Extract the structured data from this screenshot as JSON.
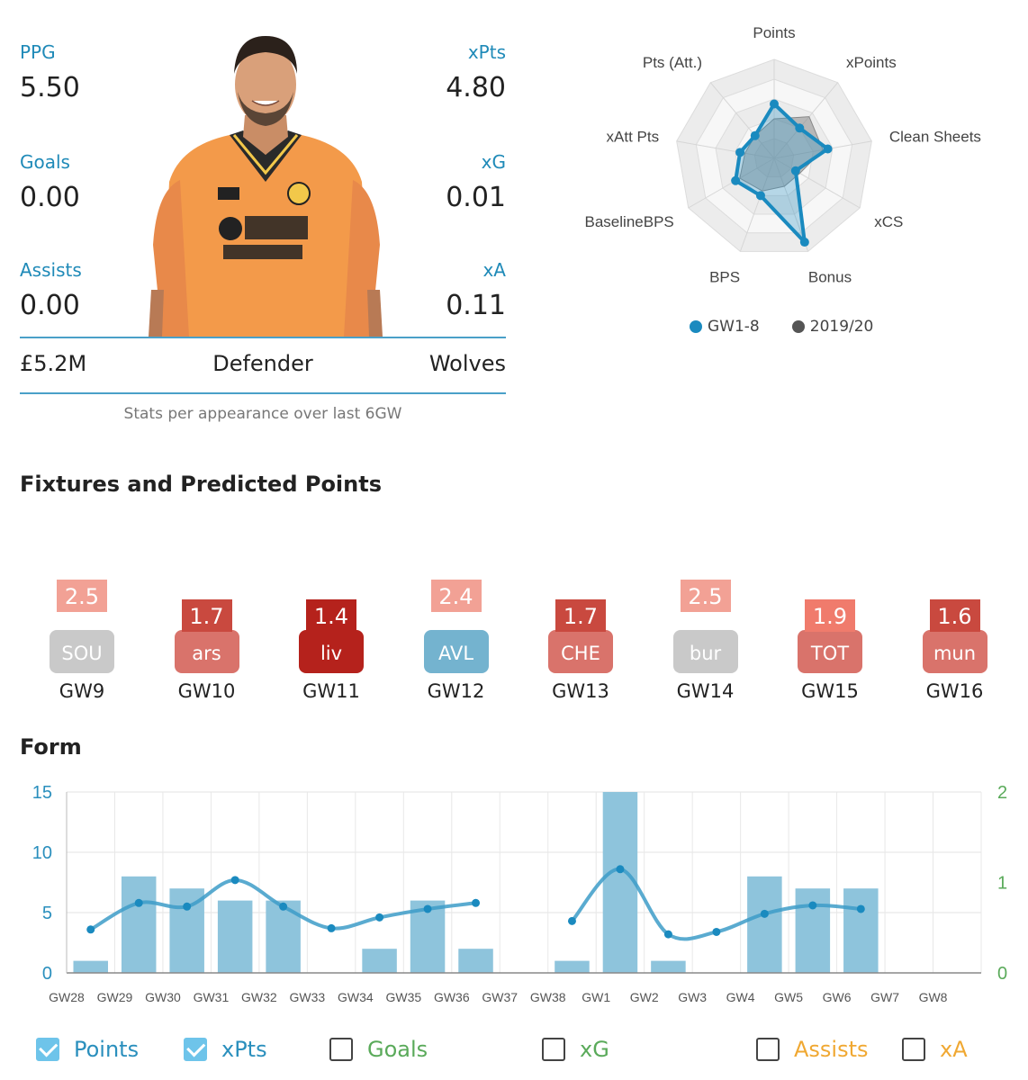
{
  "player": {
    "stats": {
      "ppg": {
        "label": "PPG",
        "value": "5.50"
      },
      "xpts": {
        "label": "xPts",
        "value": "4.80"
      },
      "goals": {
        "label": "Goals",
        "value": "0.00"
      },
      "xg": {
        "label": "xG",
        "value": "0.01"
      },
      "assists": {
        "label": "Assists",
        "value": "0.00"
      },
      "xa": {
        "label": "xA",
        "value": "0.11"
      }
    },
    "price": "£5.2M",
    "position": "Defender",
    "team": "Wolves",
    "note": "Stats per appearance over last 6GW"
  },
  "radar": {
    "axes": [
      "Points",
      "xPoints",
      "Clean Sheets",
      "xCS",
      "Bonus",
      "BPS",
      "BaselineBPS",
      "xAtt Pts",
      "Pts (Att.)"
    ],
    "legend": [
      {
        "label": "GW1-8",
        "color": "#1a8abf"
      },
      {
        "label": "2019/20",
        "color": "#555555"
      }
    ]
  },
  "fixtures": {
    "title": "Fixtures and Predicted Points",
    "items": [
      {
        "gw": "GW9",
        "team": "SOU",
        "pred": "2.5",
        "team_color": "#c9c9c9",
        "pred_color": "#f2a195",
        "raised": true
      },
      {
        "gw": "GW10",
        "team": "ars",
        "pred": "1.7",
        "team_color": "#d9736b",
        "pred_color": "#c9493f",
        "raised": false
      },
      {
        "gw": "GW11",
        "team": "liv",
        "pred": "1.4",
        "team_color": "#b5221c",
        "pred_color": "#b5221c",
        "raised": false
      },
      {
        "gw": "GW12",
        "team": "AVL",
        "pred": "2.4",
        "team_color": "#74b3cf",
        "pred_color": "#f2a195",
        "raised": true
      },
      {
        "gw": "GW13",
        "team": "CHE",
        "pred": "1.7",
        "team_color": "#d9736b",
        "pred_color": "#c9493f",
        "raised": false
      },
      {
        "gw": "GW14",
        "team": "bur",
        "pred": "2.5",
        "team_color": "#c9c9c9",
        "pred_color": "#f2a195",
        "raised": true
      },
      {
        "gw": "GW15",
        "team": "TOT",
        "pred": "1.9",
        "team_color": "#d9736b",
        "pred_color": "#f07b6c",
        "raised": false
      },
      {
        "gw": "GW16",
        "team": "mun",
        "pred": "1.6",
        "team_color": "#d9736b",
        "pred_color": "#c9493f",
        "raised": false
      }
    ]
  },
  "form": {
    "title": "Form",
    "checkboxes": [
      {
        "label": "Points",
        "checked": true,
        "color": "#2a8fbd"
      },
      {
        "label": "xPts",
        "checked": true,
        "color": "#2a8fbd"
      },
      {
        "label": "Goals",
        "checked": false,
        "color": "#5aaa5a"
      },
      {
        "label": "xG",
        "checked": false,
        "color": "#5aaa5a"
      },
      {
        "label": "Assists",
        "checked": false,
        "color": "#f0a832"
      },
      {
        "label": "xA",
        "checked": false,
        "color": "#f0a832"
      }
    ]
  },
  "chart_data": {
    "type": "bar",
    "categories": [
      "GW28",
      "GW29",
      "GW30",
      "GW31",
      "GW32",
      "GW33",
      "GW34",
      "GW35",
      "GW36",
      "GW37",
      "GW38",
      "GW1",
      "GW2",
      "GW3",
      "GW4",
      "GW5",
      "GW6",
      "GW7",
      "GW8"
    ],
    "series": [
      {
        "name": "Points",
        "type": "bar",
        "values": [
          1,
          8,
          7,
          6,
          6,
          null,
          2,
          6,
          2,
          null,
          1,
          15,
          1,
          null,
          8,
          7,
          7,
          null,
          null
        ],
        "color": "#8ec4dc"
      },
      {
        "name": "xPts",
        "type": "line",
        "values": [
          3.6,
          5.8,
          5.5,
          7.7,
          5.5,
          3.7,
          4.6,
          5.3,
          5.8,
          null,
          4.3,
          8.6,
          3.2,
          3.4,
          4.9,
          5.6,
          5.3,
          null,
          null
        ],
        "color": "#3d9cc8"
      }
    ],
    "ylim": [
      0,
      15
    ],
    "yticks": [
      0,
      5,
      10,
      15
    ],
    "y2lim": [
      0,
      2
    ],
    "y2ticks": [
      0,
      1,
      2
    ],
    "grid": true
  }
}
